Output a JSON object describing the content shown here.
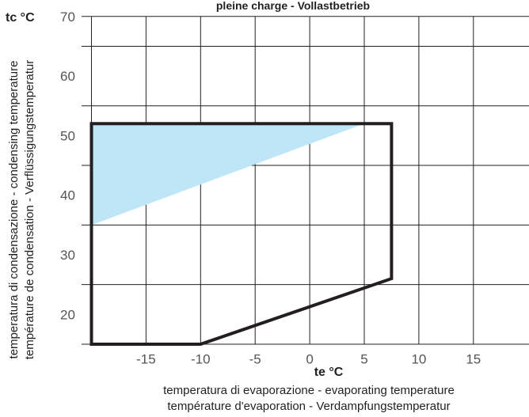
{
  "chart_data": {
    "type": "area",
    "title": "pleine charge - Vollastbetrieb",
    "x_unit_label": "te  °C",
    "y_unit_label": "tc  °C",
    "xlabel_lines": [
      "temperatura di evaporazione  -   evaporating temperature",
      "température d'evaporation  -  Verdampfungstemperatur"
    ],
    "ylabel_lines": [
      "temperatura di condensazione - condensing temperature",
      "température de condensation - Verflüssigungstemperatur"
    ],
    "x_ticks": [
      "-15",
      "-10",
      "-5",
      "0",
      "5",
      "10",
      "15"
    ],
    "y_ticks": [
      "20",
      "30",
      "40",
      "50",
      "60",
      "70"
    ],
    "xlim": [
      -20,
      20
    ],
    "ylim": [
      15,
      70
    ],
    "grid": true,
    "series": [
      {
        "kind": "envelope-outline",
        "points": [
          {
            "x": -20,
            "y": 52
          },
          {
            "x": 7.5,
            "y": 52
          },
          {
            "x": 7.5,
            "y": 26
          },
          {
            "x": -10,
            "y": 15
          },
          {
            "x": -20,
            "y": 15
          }
        ]
      },
      {
        "kind": "shaded-region",
        "points": [
          {
            "x": -20,
            "y": 52
          },
          {
            "x": 5,
            "y": 52
          },
          {
            "x": -20,
            "y": 35
          }
        ]
      }
    ],
    "colors": {
      "outline": "#231f20",
      "shade": "#bfe6f7",
      "grid": "#231f20",
      "tick": "#555555"
    }
  }
}
